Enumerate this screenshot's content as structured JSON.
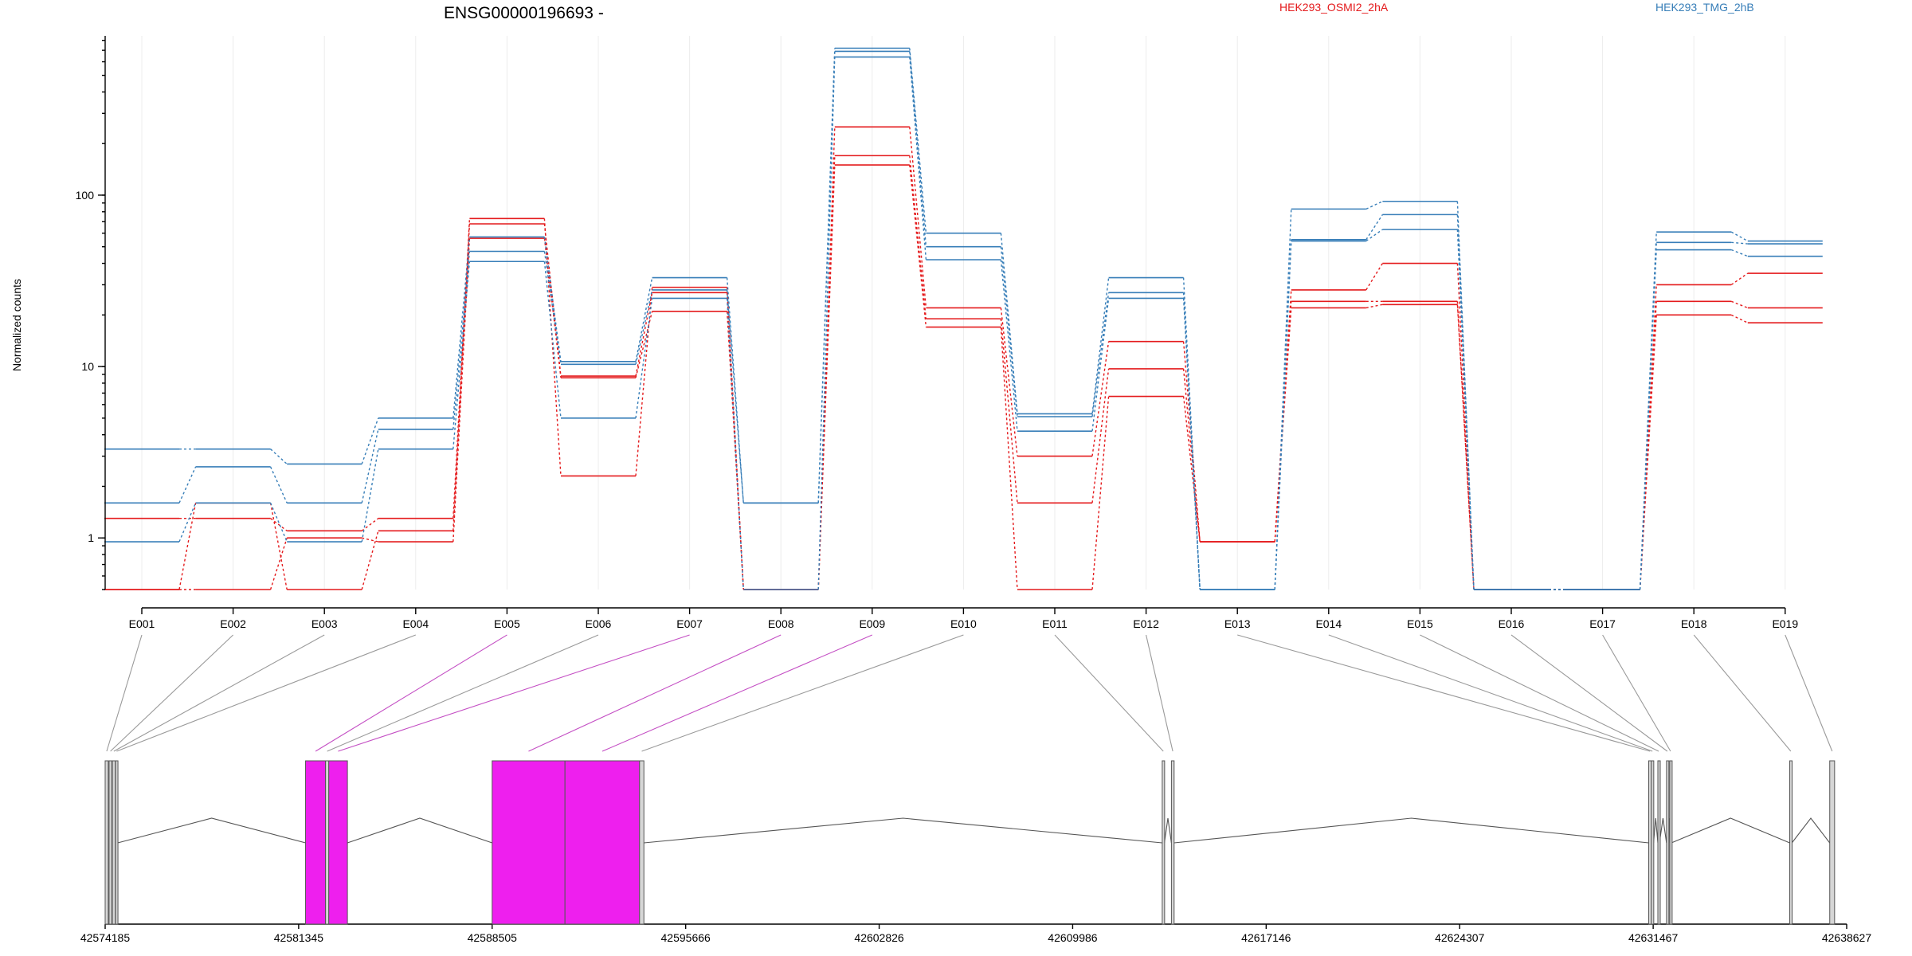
{
  "title": "ENSG00000196693 -",
  "legend": [
    {
      "name": "HEK293_OSMI2_2hA",
      "color": "#e41a1c"
    },
    {
      "name": "HEK293_TMG_2hB",
      "color": "#377eb8"
    }
  ],
  "chart_data": {
    "type": "line",
    "title": "ENSG00000196693 -",
    "xlabel": "",
    "ylabel": "Normalized counts",
    "yscale": "log",
    "ylim": [
      0.5,
      850
    ],
    "y_ticks": [
      {
        "value": 1,
        "label": "1"
      },
      {
        "value": 10,
        "label": "10"
      },
      {
        "value": 100,
        "label": "100"
      }
    ],
    "grid": true,
    "legend_position": "top",
    "categories": [
      "E001",
      "E002",
      "E003",
      "E004",
      "E005",
      "E006",
      "E007",
      "E008",
      "E009",
      "E010",
      "E011",
      "E012",
      "E013",
      "E014",
      "E015",
      "E016",
      "E017",
      "E018",
      "E019"
    ],
    "series": [
      {
        "group": "HEK293_OSMI2_2hA",
        "color": "#e41a1c",
        "values": [
          1.3,
          1.3,
          1.1,
          1.3,
          73,
          2.3,
          29,
          0.5,
          250,
          22,
          3.0,
          14,
          0.95,
          28,
          40,
          0.5,
          0.5,
          30,
          35
        ]
      },
      {
        "group": "HEK293_OSMI2_2hA",
        "color": "#e41a1c",
        "values": [
          0.5,
          1.6,
          0.5,
          1.1,
          68,
          8.8,
          27,
          0.5,
          170,
          19,
          1.6,
          9.7,
          0.95,
          24,
          24,
          0.5,
          0.5,
          24,
          22
        ]
      },
      {
        "group": "HEK293_OSMI2_2hA",
        "color": "#e41a1c",
        "values": [
          0.5,
          0.5,
          1.0,
          0.95,
          56,
          8.6,
          21,
          0.5,
          150,
          17,
          0.5,
          6.7,
          0.95,
          22,
          23,
          0.5,
          0.5,
          20,
          18
        ]
      },
      {
        "group": "HEK293_TMG_2hB",
        "color": "#377eb8",
        "values": [
          3.3,
          3.3,
          2.7,
          5.0,
          57,
          10.7,
          33,
          1.6,
          720,
          60,
          5.3,
          33,
          0.5,
          83,
          92,
          0.5,
          0.5,
          61,
          54
        ]
      },
      {
        "group": "HEK293_TMG_2hB",
        "color": "#377eb8",
        "values": [
          1.6,
          2.6,
          1.6,
          4.3,
          47,
          10.3,
          28,
          1.6,
          690,
          50,
          5.1,
          27,
          0.5,
          55,
          77,
          0.5,
          0.5,
          53,
          52
        ]
      },
      {
        "group": "HEK293_TMG_2hB",
        "color": "#377eb8",
        "values": [
          0.95,
          1.6,
          0.95,
          3.3,
          41,
          5.0,
          25,
          0.5,
          640,
          42,
          4.2,
          25,
          0.5,
          54,
          63,
          0.5,
          0.5,
          48,
          44
        ]
      }
    ],
    "genomic_axis": {
      "range": [
        42574185,
        42638627
      ],
      "ticks": [
        "42574185",
        "42581345",
        "42588505",
        "42595666",
        "42602826",
        "42609986",
        "42617146",
        "42624307",
        "42631467",
        "42638627"
      ]
    },
    "exon_positions": [
      {
        "id": "E001",
        "start": 42574185,
        "end": 42574300,
        "highlight": false
      },
      {
        "id": "E002",
        "start": 42574330,
        "end": 42574430,
        "highlight": false
      },
      {
        "id": "E003",
        "start": 42574450,
        "end": 42574560,
        "highlight": false
      },
      {
        "id": "E004",
        "start": 42574570,
        "end": 42574650,
        "highlight": false
      },
      {
        "id": "E005",
        "start": 42581600,
        "end": 42582340,
        "highlight": true
      },
      {
        "id": "E006",
        "start": 42582340,
        "end": 42582460,
        "highlight": false
      },
      {
        "id": "E007",
        "start": 42582460,
        "end": 42583150,
        "highlight": true
      },
      {
        "id": "E008",
        "start": 42588505,
        "end": 42591200,
        "highlight": true
      },
      {
        "id": "E009",
        "start": 42591200,
        "end": 42593960,
        "highlight": true
      },
      {
        "id": "E010",
        "start": 42593960,
        "end": 42594120,
        "highlight": false
      },
      {
        "id": "E011",
        "start": 42613300,
        "end": 42613380,
        "highlight": false
      },
      {
        "id": "E012",
        "start": 42613640,
        "end": 42613740,
        "highlight": false
      },
      {
        "id": "E013",
        "start": 42631300,
        "end": 42631400,
        "highlight": false
      },
      {
        "id": "E014",
        "start": 42631400,
        "end": 42631480,
        "highlight": false
      },
      {
        "id": "E015",
        "start": 42631640,
        "end": 42631700,
        "highlight": false
      },
      {
        "id": "E016",
        "start": 42631960,
        "end": 42632020,
        "highlight": false
      },
      {
        "id": "E017",
        "start": 42632080,
        "end": 42632140,
        "highlight": false
      },
      {
        "id": "E018",
        "start": 42636520,
        "end": 42636600,
        "highlight": false
      },
      {
        "id": "E019",
        "start": 42638000,
        "end": 42638180,
        "highlight": false
      }
    ]
  }
}
